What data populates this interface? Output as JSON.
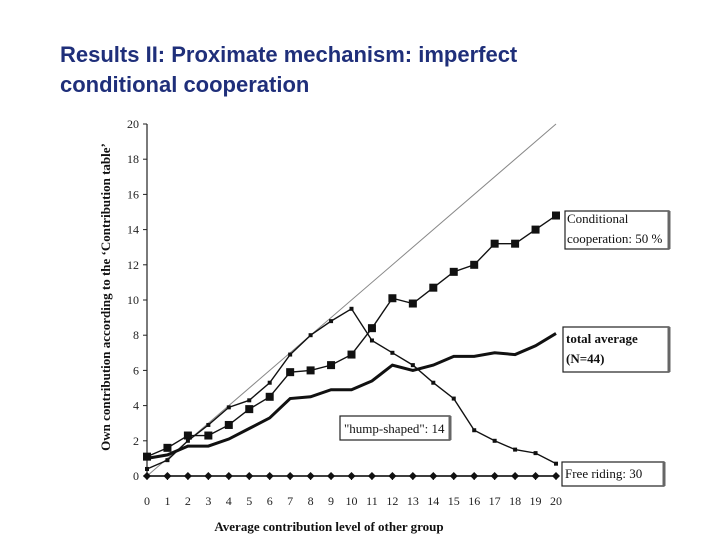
{
  "slide": {
    "title_line1": "Results II: Proximate mechanism: imperfect",
    "title_line2": "conditional cooperation"
  },
  "chart_data": {
    "type": "line",
    "xlabel": "Average contribution level of other group",
    "ylabel": "Own contribution according to the ‘Contribution table’",
    "xlim": [
      0,
      20
    ],
    "ylim": [
      0,
      20
    ],
    "x_ticks": [
      0,
      1,
      2,
      3,
      4,
      5,
      6,
      7,
      8,
      9,
      10,
      11,
      12,
      13,
      14,
      15,
      16,
      17,
      18,
      19,
      20
    ],
    "y_ticks": [
      0,
      2,
      4,
      6,
      8,
      10,
      12,
      14,
      16,
      18,
      20
    ],
    "grid": false,
    "x": [
      0,
      1,
      2,
      3,
      4,
      5,
      6,
      7,
      8,
      9,
      10,
      11,
      12,
      13,
      14,
      15,
      16,
      17,
      18,
      19,
      20
    ],
    "diagonal": {
      "from": [
        0,
        0
      ],
      "to": [
        20,
        20
      ]
    },
    "series": [
      {
        "key": "conditional",
        "label_line1": "Conditional",
        "label_line2": "cooperation: 50 %",
        "marker": "square",
        "color": "#111111",
        "values": [
          1.1,
          1.6,
          2.3,
          2.3,
          2.9,
          3.8,
          4.5,
          5.9,
          6.0,
          6.3,
          6.9,
          8.4,
          10.1,
          9.8,
          10.7,
          11.6,
          12.0,
          13.2,
          13.2,
          14.0,
          14.8
        ]
      },
      {
        "key": "total",
        "label_line1": "total average",
        "label_line2": "(N=44)",
        "marker": "none",
        "color": "#111111",
        "values": [
          1.0,
          1.2,
          1.7,
          1.7,
          2.1,
          2.7,
          3.3,
          4.4,
          4.5,
          4.9,
          4.9,
          5.4,
          6.3,
          6.0,
          6.3,
          6.8,
          6.8,
          7.0,
          6.9,
          7.4,
          8.1
        ]
      },
      {
        "key": "hump",
        "label": "\"hump-shaped\": 14",
        "marker": "small-square",
        "color": "#111111",
        "values": [
          0.4,
          0.9,
          2.0,
          2.9,
          3.9,
          4.3,
          5.3,
          6.9,
          8.0,
          8.8,
          9.5,
          7.7,
          7.0,
          6.3,
          5.3,
          4.4,
          2.6,
          2.0,
          1.5,
          1.3,
          0.7
        ]
      },
      {
        "key": "free",
        "label": "Free riding: 30",
        "marker": "diamond",
        "color": "#111111",
        "values": [
          0,
          0,
          0,
          0,
          0,
          0,
          0,
          0,
          0,
          0,
          0,
          0,
          0,
          0,
          0,
          0,
          0,
          0,
          0,
          0,
          0
        ]
      }
    ]
  }
}
